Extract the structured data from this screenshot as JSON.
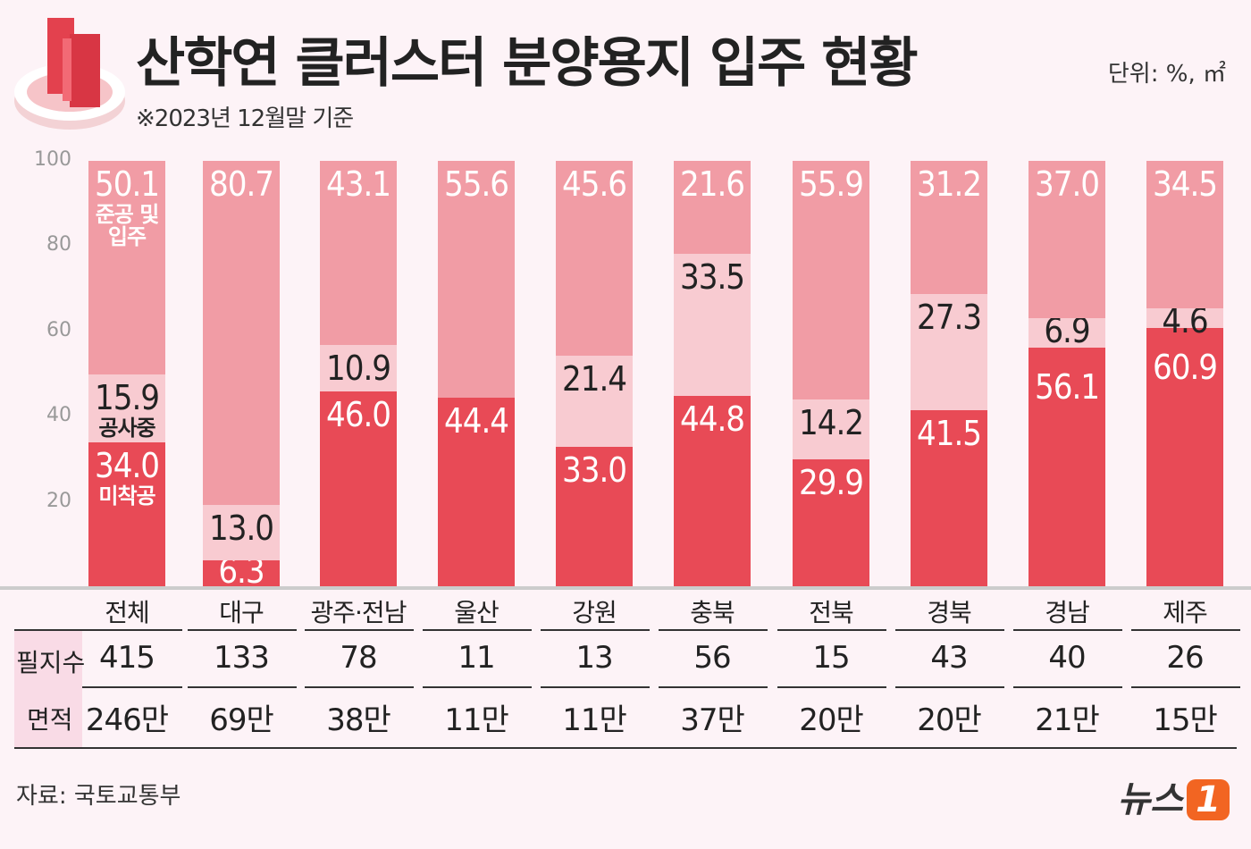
{
  "title": "산학연 클러스터 분양용지 입주 현황",
  "subtitle": "※2023년 12월말 기준",
  "unit": "단위: %, ㎡",
  "source": "자료: 국토교통부",
  "logo": "뉴스1",
  "colors": {
    "not_started": "#e84a56",
    "under_construction": "#f8cbd1",
    "completed": "#f19ca5",
    "background": "#fdf3f7"
  },
  "chart_data": {
    "type": "bar",
    "stacked": true,
    "ylim": [
      0,
      100
    ],
    "yticks": [
      "20",
      "40",
      "60",
      "80",
      "100"
    ],
    "categories": [
      "전체",
      "대구",
      "광주·전남",
      "울산",
      "강원",
      "충북",
      "전북",
      "경북",
      "경남",
      "제주"
    ],
    "series": [
      {
        "name": "미착공",
        "values": [
          34.0,
          6.3,
          46.0,
          44.4,
          33.0,
          44.8,
          29.9,
          41.5,
          56.1,
          60.9
        ]
      },
      {
        "name": "공사중",
        "values": [
          15.9,
          13.0,
          10.9,
          null,
          21.4,
          33.5,
          14.2,
          27.3,
          6.9,
          4.6
        ]
      },
      {
        "name": "준공 및 입주",
        "values": [
          50.1,
          80.7,
          43.1,
          55.6,
          45.6,
          21.6,
          55.9,
          31.2,
          37.0,
          34.5
        ]
      }
    ],
    "series_labels": {
      "completed": "준공 및\n입주",
      "construction": "공사중",
      "not_started": "미착공"
    }
  },
  "table": {
    "row_labels": [
      "필지수",
      "면적"
    ],
    "parcels": [
      "415",
      "133",
      "78",
      "11",
      "13",
      "56",
      "15",
      "43",
      "40",
      "26"
    ],
    "area": [
      "246만",
      "69만",
      "38만",
      "11만",
      "11만",
      "37만",
      "20만",
      "20만",
      "21만",
      "15만"
    ]
  }
}
